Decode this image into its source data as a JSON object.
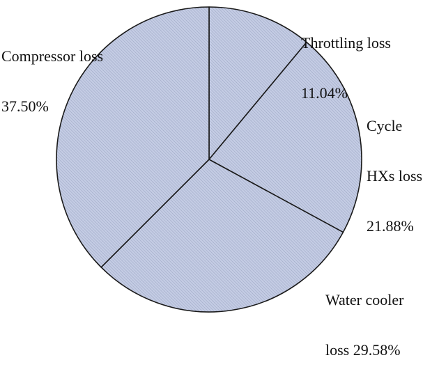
{
  "chart_data": {
    "type": "pie",
    "title": "",
    "start_angle_deg": 90,
    "direction": "clockwise",
    "slice_fill": "#c4cce4",
    "slice_hatch": "#8f9ab8",
    "edge_color": "#1a1a1a",
    "slices": [
      {
        "label": "Throttling loss",
        "label_lines": [
          "Throttling loss",
          "11.04%"
        ],
        "value": 11.04
      },
      {
        "label": "Cycle HXs loss",
        "label_lines": [
          "Cycle",
          "HXs loss",
          "21.88%"
        ],
        "value": 21.88
      },
      {
        "label": "Water cooler loss",
        "label_lines": [
          "Water cooler",
          "loss 29.58%"
        ],
        "value": 29.58
      },
      {
        "label": "Compressor loss",
        "label_lines": [
          "Compressor loss",
          "37.50%"
        ],
        "value": 37.5
      }
    ]
  }
}
